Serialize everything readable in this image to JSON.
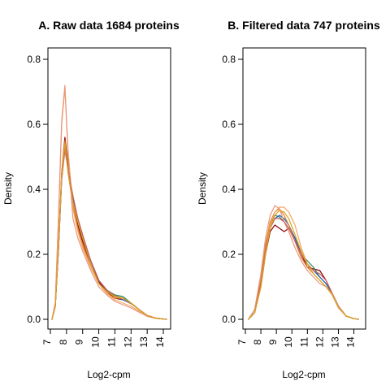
{
  "chart_data": [
    {
      "type": "line",
      "title": "A. Raw data  1684  proteins",
      "xlabel": "Log2-cpm",
      "ylabel": "Density",
      "xlim": [
        7,
        14.2
      ],
      "ylim": [
        0,
        0.8
      ],
      "x_ticks": [
        "7",
        "8",
        "9",
        "10",
        "11",
        "12",
        "13",
        "14"
      ],
      "y_ticks": [
        "0.0",
        "0.2",
        "0.4",
        "0.6",
        "0.8"
      ],
      "grid": false,
      "series": [
        {
          "color": "#8B0000",
          "x": [
            7.1,
            7.3,
            7.5,
            7.7,
            7.9,
            8.1,
            8.4,
            8.7,
            9,
            9.5,
            10,
            10.5,
            11,
            11.5,
            12,
            12.5,
            13,
            13.5,
            14,
            14.2
          ],
          "y": [
            0,
            0.04,
            0.22,
            0.45,
            0.56,
            0.47,
            0.36,
            0.29,
            0.24,
            0.17,
            0.115,
            0.085,
            0.065,
            0.06,
            0.05,
            0.03,
            0.012,
            0.004,
            0.001,
            0
          ]
        },
        {
          "color": "#2E8B57",
          "x": [
            7.1,
            7.3,
            7.5,
            7.7,
            7.9,
            8.1,
            8.4,
            8.7,
            9,
            9.5,
            10,
            10.5,
            11,
            11.5,
            12,
            12.5,
            13,
            13.5,
            14,
            14.2
          ],
          "y": [
            0,
            0.04,
            0.21,
            0.44,
            0.54,
            0.46,
            0.37,
            0.3,
            0.25,
            0.18,
            0.12,
            0.09,
            0.075,
            0.07,
            0.05,
            0.03,
            0.012,
            0.004,
            0.001,
            0
          ]
        },
        {
          "color": "#1F5FBF",
          "x": [
            7.1,
            7.3,
            7.5,
            7.7,
            7.9,
            8.1,
            8.4,
            8.7,
            9,
            9.5,
            10,
            10.5,
            11,
            11.5,
            12,
            12.5,
            13,
            13.5,
            14,
            14.2
          ],
          "y": [
            0,
            0.04,
            0.21,
            0.43,
            0.53,
            0.46,
            0.37,
            0.31,
            0.26,
            0.18,
            0.12,
            0.09,
            0.07,
            0.06,
            0.048,
            0.03,
            0.012,
            0.004,
            0.001,
            0
          ]
        },
        {
          "color": "#E08030",
          "x": [
            7.1,
            7.3,
            7.5,
            7.7,
            7.9,
            8.1,
            8.4,
            8.7,
            9,
            9.5,
            10,
            10.5,
            11,
            11.5,
            12,
            12.5,
            13,
            13.5,
            14,
            14.2
          ],
          "y": [
            0,
            0.04,
            0.22,
            0.45,
            0.55,
            0.45,
            0.35,
            0.28,
            0.23,
            0.16,
            0.11,
            0.08,
            0.065,
            0.065,
            0.048,
            0.03,
            0.012,
            0.004,
            0.001,
            0
          ]
        },
        {
          "color": "#F4A460",
          "x": [
            7.1,
            7.3,
            7.5,
            7.7,
            7.9,
            8.1,
            8.4,
            8.7,
            9,
            9.5,
            10,
            10.5,
            11,
            11.5,
            12,
            12.5,
            13,
            13.5,
            14,
            14.2
          ],
          "y": [
            0,
            0.05,
            0.3,
            0.6,
            0.71,
            0.52,
            0.34,
            0.27,
            0.22,
            0.16,
            0.11,
            0.08,
            0.06,
            0.05,
            0.04,
            0.025,
            0.01,
            0.003,
            0.001,
            0
          ]
        },
        {
          "color": "#E9967A",
          "x": [
            7.1,
            7.3,
            7.5,
            7.7,
            7.9,
            8.1,
            8.4,
            8.7,
            9,
            9.5,
            10,
            10.5,
            11,
            11.5,
            12,
            12.5,
            13,
            13.5,
            14,
            14.2
          ],
          "y": [
            0,
            0.05,
            0.31,
            0.61,
            0.72,
            0.5,
            0.31,
            0.25,
            0.21,
            0.15,
            0.1,
            0.075,
            0.055,
            0.045,
            0.035,
            0.022,
            0.009,
            0.003,
            0.001,
            0
          ]
        },
        {
          "color": "#CD5C5C",
          "x": [
            7.1,
            7.3,
            7.5,
            7.7,
            7.9,
            8.1,
            8.4,
            8.7,
            9,
            9.5,
            10,
            10.5,
            11,
            11.5,
            12,
            12.5,
            13,
            13.5,
            14,
            14.2
          ],
          "y": [
            0,
            0.04,
            0.21,
            0.43,
            0.52,
            0.46,
            0.38,
            0.31,
            0.26,
            0.18,
            0.12,
            0.09,
            0.072,
            0.065,
            0.05,
            0.03,
            0.012,
            0.004,
            0.001,
            0
          ]
        },
        {
          "color": "#DAA520",
          "x": [
            7.1,
            7.3,
            7.5,
            7.7,
            7.9,
            8.1,
            8.4,
            8.7,
            9,
            9.5,
            10,
            10.5,
            11,
            11.5,
            12,
            12.5,
            13,
            13.5,
            14,
            14.2
          ],
          "y": [
            0,
            0.04,
            0.22,
            0.44,
            0.54,
            0.45,
            0.36,
            0.3,
            0.25,
            0.17,
            0.11,
            0.085,
            0.07,
            0.065,
            0.05,
            0.03,
            0.012,
            0.004,
            0.001,
            0
          ]
        }
      ]
    },
    {
      "type": "line",
      "title": "B. Filtered data 747  proteins",
      "xlabel": "Log2-cpm",
      "ylabel": "Density",
      "xlim": [
        7,
        14.6
      ],
      "ylim": [
        0,
        0.8
      ],
      "x_ticks": [
        "7",
        "8",
        "9",
        "10",
        "11",
        "12",
        "13",
        "14"
      ],
      "y_ticks": [
        "0.0",
        "0.2",
        "0.4",
        "0.6",
        "0.8"
      ],
      "grid": false,
      "series": [
        {
          "color": "#8B0000",
          "x": [
            7.2,
            7.6,
            8,
            8.3,
            8.6,
            8.9,
            9.2,
            9.5,
            9.8,
            10.2,
            10.6,
            11,
            11.4,
            11.8,
            12.2,
            12.6,
            13,
            13.5,
            14,
            14.3
          ],
          "y": [
            0,
            0.02,
            0.1,
            0.2,
            0.27,
            0.29,
            0.28,
            0.27,
            0.28,
            0.25,
            0.2,
            0.16,
            0.155,
            0.15,
            0.12,
            0.08,
            0.04,
            0.01,
            0.002,
            0
          ]
        },
        {
          "color": "#2E8B57",
          "x": [
            7.2,
            7.6,
            8,
            8.3,
            8.6,
            8.9,
            9.2,
            9.5,
            9.8,
            10.2,
            10.6,
            11,
            11.4,
            11.8,
            12.2,
            12.6,
            13,
            13.5,
            14,
            14.3
          ],
          "y": [
            0,
            0.03,
            0.12,
            0.22,
            0.29,
            0.32,
            0.315,
            0.3,
            0.28,
            0.25,
            0.2,
            0.18,
            0.16,
            0.13,
            0.11,
            0.08,
            0.04,
            0.01,
            0.002,
            0
          ]
        },
        {
          "color": "#1F5FBF",
          "x": [
            7.2,
            7.6,
            8,
            8.3,
            8.6,
            8.9,
            9.2,
            9.5,
            9.8,
            10.2,
            10.6,
            11,
            11.4,
            11.8,
            12.2,
            12.6,
            13,
            13.5,
            14,
            14.3
          ],
          "y": [
            0,
            0.02,
            0.11,
            0.21,
            0.28,
            0.31,
            0.32,
            0.31,
            0.29,
            0.25,
            0.2,
            0.17,
            0.15,
            0.13,
            0.11,
            0.08,
            0.04,
            0.01,
            0.002,
            0
          ]
        },
        {
          "color": "#E08030",
          "x": [
            7.2,
            7.6,
            8,
            8.3,
            8.6,
            8.9,
            9.2,
            9.5,
            9.8,
            10.2,
            10.6,
            11,
            11.4,
            11.8,
            12.2,
            12.6,
            13,
            13.5,
            14,
            14.3
          ],
          "y": [
            0,
            0.02,
            0.12,
            0.23,
            0.3,
            0.33,
            0.34,
            0.32,
            0.29,
            0.24,
            0.19,
            0.16,
            0.14,
            0.12,
            0.1,
            0.08,
            0.04,
            0.01,
            0.002,
            0
          ]
        },
        {
          "color": "#F4A460",
          "x": [
            7.2,
            7.6,
            8,
            8.3,
            8.6,
            8.9,
            9.2,
            9.5,
            9.8,
            10.2,
            10.6,
            11,
            11.4,
            11.8,
            12.2,
            12.6,
            13,
            13.5,
            14,
            14.3
          ],
          "y": [
            0,
            0.02,
            0.1,
            0.21,
            0.29,
            0.33,
            0.345,
            0.345,
            0.33,
            0.29,
            0.22,
            0.17,
            0.14,
            0.12,
            0.1,
            0.075,
            0.035,
            0.01,
            0.002,
            0
          ]
        },
        {
          "color": "#E9967A",
          "x": [
            7.2,
            7.6,
            8,
            8.3,
            8.6,
            8.9,
            9.2,
            9.5,
            9.8,
            10.2,
            10.6,
            11,
            11.4,
            11.8,
            12.2,
            12.6,
            13,
            13.5,
            14,
            14.3
          ],
          "y": [
            0,
            0.03,
            0.14,
            0.25,
            0.32,
            0.35,
            0.34,
            0.3,
            0.27,
            0.22,
            0.18,
            0.15,
            0.13,
            0.11,
            0.1,
            0.075,
            0.035,
            0.01,
            0.002,
            0
          ]
        },
        {
          "color": "#CD5C5C",
          "x": [
            7.2,
            7.6,
            8,
            8.3,
            8.6,
            8.9,
            9.2,
            9.5,
            9.8,
            10.2,
            10.6,
            11,
            11.4,
            11.8,
            12.2,
            12.6,
            13,
            13.5,
            14,
            14.3
          ],
          "y": [
            0,
            0.02,
            0.11,
            0.21,
            0.28,
            0.31,
            0.31,
            0.3,
            0.28,
            0.24,
            0.2,
            0.17,
            0.15,
            0.14,
            0.12,
            0.08,
            0.04,
            0.01,
            0.002,
            0
          ]
        },
        {
          "color": "#DAA520",
          "x": [
            7.2,
            7.6,
            8,
            8.3,
            8.6,
            8.9,
            9.2,
            9.5,
            9.8,
            10.2,
            10.6,
            11,
            11.4,
            11.8,
            12.2,
            12.6,
            13,
            13.5,
            14,
            14.3
          ],
          "y": [
            0,
            0.02,
            0.1,
            0.2,
            0.28,
            0.32,
            0.335,
            0.33,
            0.31,
            0.26,
            0.21,
            0.17,
            0.14,
            0.12,
            0.1,
            0.078,
            0.038,
            0.01,
            0.002,
            0
          ]
        }
      ]
    }
  ]
}
